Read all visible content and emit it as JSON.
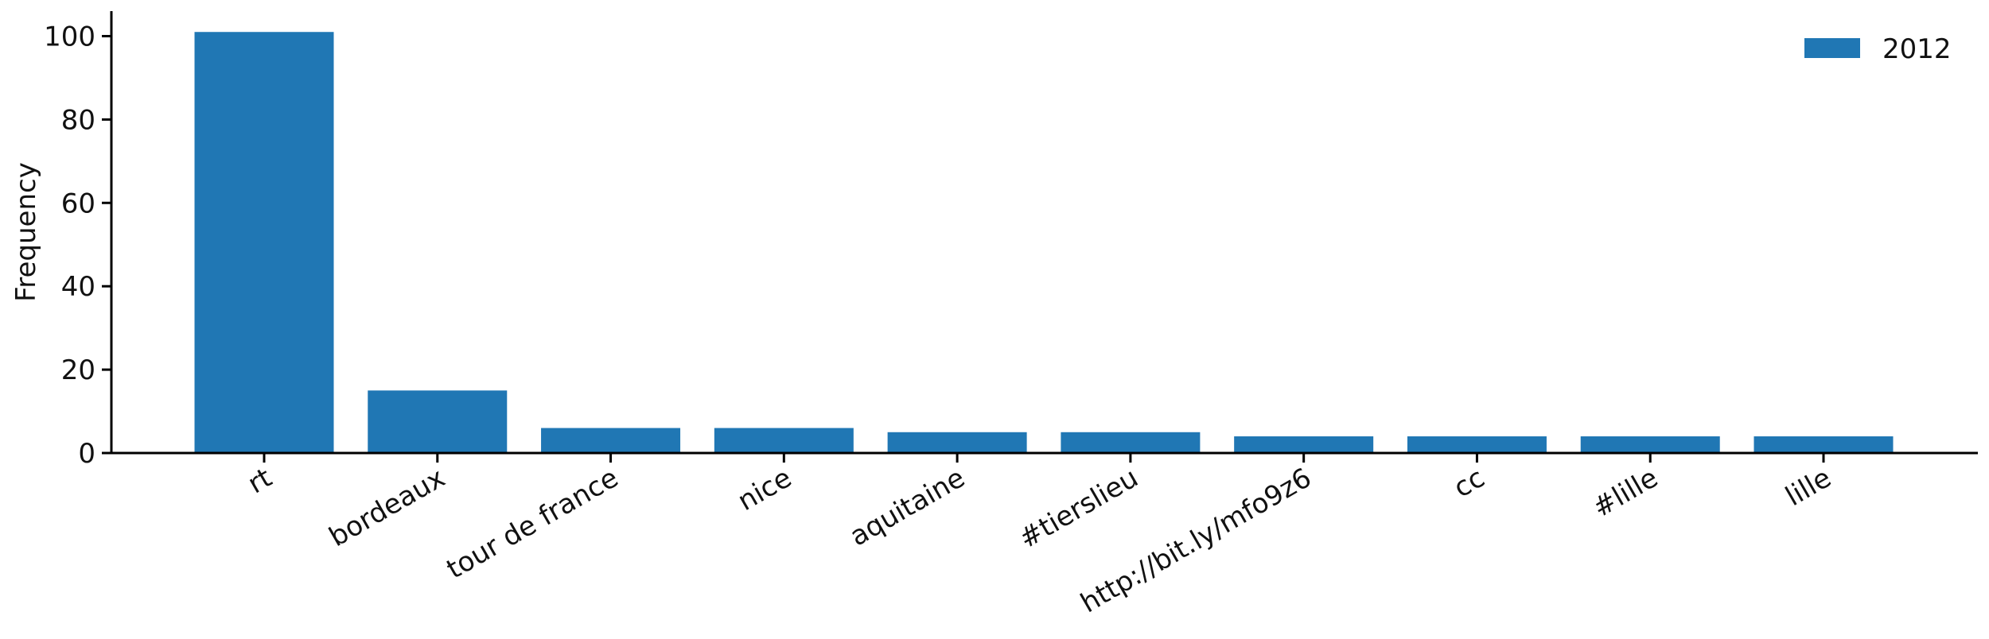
{
  "chart_data": {
    "type": "bar",
    "categories": [
      "rt",
      "bordeaux",
      "tour de france",
      "nice",
      "aquitaine",
      "#tierslieu",
      "http://bit.ly/mfo9z6",
      "cc",
      "#lille",
      "lille"
    ],
    "series": [
      {
        "name": "2012",
        "values": [
          101,
          15,
          6,
          6,
          5,
          5,
          4,
          4,
          4,
          4
        ],
        "color": "#2077b4"
      }
    ],
    "title": "",
    "xlabel": "",
    "ylabel": "Frequency",
    "ylim": [
      0,
      106
    ],
    "yticks": [
      0,
      20,
      40,
      60,
      80,
      100
    ],
    "grid": false,
    "legend_position": "top-right",
    "xtick_rotation": -30
  }
}
